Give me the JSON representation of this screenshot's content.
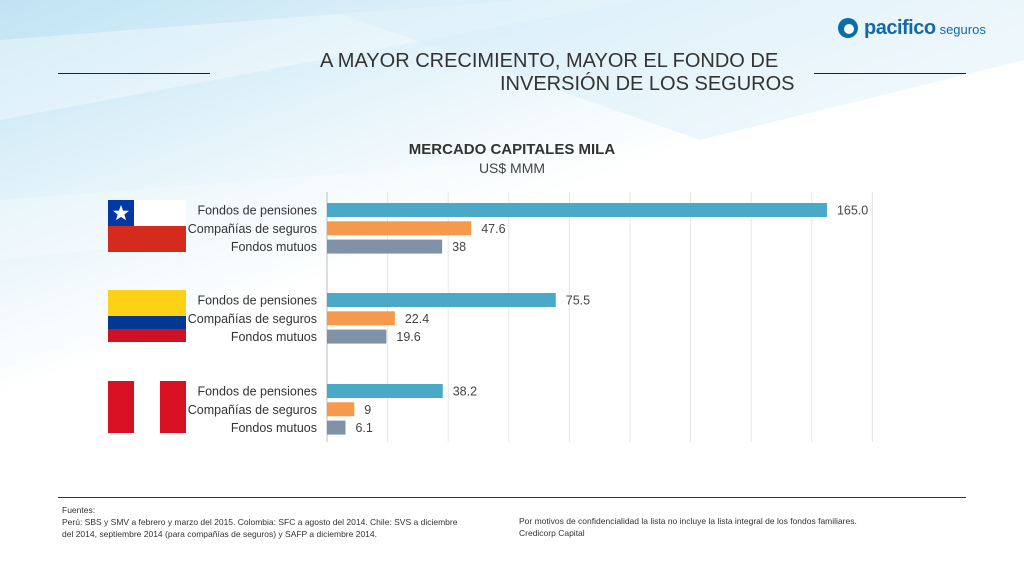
{
  "logo": {
    "brand": "pacifico",
    "suffix": "seguros"
  },
  "slide": {
    "title_line1": "A  MAYOR CRECIMIENTO, MAYOR EL FONDO DE",
    "title_line2": "INVERSIÓN DE LOS SEGUROS"
  },
  "chart_data": {
    "type": "bar",
    "orientation": "horizontal",
    "title": "MERCADO CAPITALES MILA",
    "subtitle": "US$ MMM",
    "grid": true,
    "xlim": [
      0,
      195
    ],
    "groups": [
      {
        "flag": "chile-flag",
        "bars": [
          {
            "label": "Fondos de pensiones",
            "value": 165.0,
            "display": "165.0",
            "color": "#4aa9c7"
          },
          {
            "label": "Compañías de seguros",
            "value": 47.6,
            "display": "47.6",
            "color": "#f59a4c"
          },
          {
            "label": "Fondos mutuos",
            "value": 38,
            "display": "38",
            "color": "#7f92a8"
          }
        ]
      },
      {
        "flag": "colombia-flag",
        "bars": [
          {
            "label": "Fondos de pensiones",
            "value": 75.5,
            "display": "75.5",
            "color": "#4aa9c7"
          },
          {
            "label": "Compañías de seguros",
            "value": 22.4,
            "display": "22.4",
            "color": "#f59a4c"
          },
          {
            "label": "Fondos mutuos",
            "value": 19.6,
            "display": "19.6",
            "color": "#7f92a8"
          }
        ]
      },
      {
        "flag": "peru-flag",
        "bars": [
          {
            "label": "Fondos de pensiones",
            "value": 38.2,
            "display": "38.2",
            "color": "#4aa9c7"
          },
          {
            "label": "Compañías de seguros",
            "value": 9,
            "display": "9",
            "color": "#f59a4c"
          },
          {
            "label": "Fondos mutuos",
            "value": 6.1,
            "display": "6.1",
            "color": "#7f92a8"
          }
        ]
      }
    ]
  },
  "footer": {
    "heading": "Fuentes:",
    "sources_line1": "Perú: SBS y SMV a febrero y marzo del 2015. Colombia: SFC a agosto del 2014. Chile: SVS a diciembre",
    "sources_line2": "del 2014, septiembre 2014 (para compañías de seguros) y SAFP a diciembre 2014.",
    "note_line1": "Por motivos de confidencialidad la lista no incluye la lista integral de los fondos familiares.",
    "note_line2": "Credicorp Capital"
  }
}
